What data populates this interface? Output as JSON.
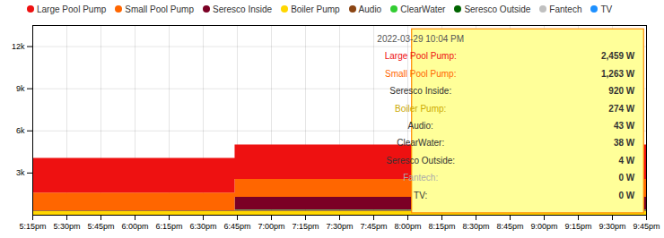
{
  "chart_data": {
    "type": "area",
    "stacked": true,
    "x": [
      0,
      89,
      116,
      270
    ],
    "series": [
      {
        "name": "Boiler Pump",
        "color": "#ffd700",
        "values": [
          274,
          274,
          274,
          274
        ]
      },
      {
        "name": "Audio",
        "color": "#8b4513",
        "values": [
          43,
          43,
          43,
          43
        ]
      },
      {
        "name": "ClearWater",
        "color": "#32cd32",
        "values": [
          0,
          38,
          38,
          38
        ]
      },
      {
        "name": "Seresco Outside",
        "color": "#006400",
        "values": [
          4,
          4,
          4,
          4
        ]
      },
      {
        "name": "Seresco Inside",
        "color": "#7b0025",
        "values": [
          0,
          920,
          920,
          920
        ]
      },
      {
        "name": "Small Pool Pump",
        "color": "#ff6600",
        "values": [
          1263,
          1263,
          1263,
          1263
        ]
      },
      {
        "name": "Large Pool Pump",
        "color": "#ee1111",
        "values": [
          2459,
          2459,
          2459,
          2459
        ]
      }
    ],
    "xlim": [
      0,
      270
    ],
    "xticks": [
      {
        "value": 0,
        "label": "5:15pm"
      },
      {
        "value": 15,
        "label": "5:30pm"
      },
      {
        "value": 30,
        "label": "5:45pm"
      },
      {
        "value": 45,
        "label": "6:00pm"
      },
      {
        "value": 60,
        "label": "6:15pm"
      },
      {
        "value": 75,
        "label": "6:30pm"
      },
      {
        "value": 90,
        "label": "6:45pm"
      },
      {
        "value": 105,
        "label": "7:00pm"
      },
      {
        "value": 120,
        "label": "7:15pm"
      },
      {
        "value": 135,
        "label": "7:30pm"
      },
      {
        "value": 150,
        "label": "7:45pm"
      },
      {
        "value": 165,
        "label": "8:00pm"
      },
      {
        "value": 180,
        "label": "8:15pm"
      },
      {
        "value": 195,
        "label": "8:30pm"
      },
      {
        "value": 210,
        "label": "8:45pm"
      },
      {
        "value": 225,
        "label": "9:00pm"
      },
      {
        "value": 240,
        "label": "9:15pm"
      },
      {
        "value": 255,
        "label": "9:30pm"
      },
      {
        "value": 270,
        "label": "9:45pm"
      }
    ],
    "ylim": [
      0,
      13500
    ],
    "yticks": [
      {
        "value": 3000,
        "label": "3k"
      },
      {
        "value": 6000,
        "label": "6k"
      },
      {
        "value": 9000,
        "label": "9k"
      },
      {
        "value": 12000,
        "label": "12k"
      }
    ],
    "grid": true,
    "legend_items": [
      {
        "label": "Large Pool Pump",
        "color": "#ee1111"
      },
      {
        "label": "Small Pool Pump",
        "color": "#ff6600"
      },
      {
        "label": "Seresco Inside",
        "color": "#7b0025"
      },
      {
        "label": "Boiler Pump",
        "color": "#ffd700"
      },
      {
        "label": "Audio",
        "color": "#8b4513"
      },
      {
        "label": "ClearWater",
        "color": "#32cd32"
      },
      {
        "label": "Seresco Outside",
        "color": "#006400"
      },
      {
        "label": "Fantech",
        "color": "#c0c0c0"
      },
      {
        "label": "TV",
        "color": "#1e90ff"
      }
    ],
    "tooltip": {
      "title": "2022-03-29 10:04 PM",
      "background": "#ffff99",
      "border_color": "#ff8c00",
      "items": [
        {
          "label": "Large Pool Pump:",
          "text": "2,459 W",
          "color": "#ee1111"
        },
        {
          "label": "Small Pool Pump:",
          "text": "1,263 W",
          "color": "#ff6600"
        },
        {
          "label": "Seresco Inside:",
          "text": "920 W",
          "color": "#333333"
        },
        {
          "label": "Boiler Pump:",
          "text": "274 W",
          "color": "#ccaa00"
        },
        {
          "label": "Audio:",
          "text": "43 W",
          "color": "#333333"
        },
        {
          "label": "ClearWater:",
          "text": "38 W",
          "color": "#333333"
        },
        {
          "label": "Seresco Outside:",
          "text": "4 W",
          "color": "#333333"
        },
        {
          "label": "Fantech:",
          "text": "0 W",
          "color": "#aaaaaa"
        },
        {
          "label": "TV:",
          "text": "0 W",
          "color": "#333333"
        }
      ]
    }
  }
}
